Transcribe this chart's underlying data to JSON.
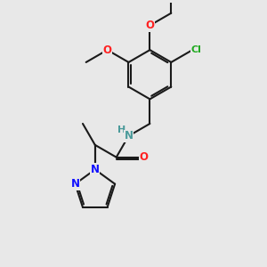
{
  "background_color": "#e8e8e8",
  "bond_color": "#1a1a1a",
  "atom_colors": {
    "O": "#ff2020",
    "N_pyrazole": "#1010ff",
    "N_amide": "#4a9a9a",
    "Cl": "#22aa22",
    "H": "#4a9a9a",
    "C": "#1a1a1a"
  },
  "figsize": [
    3.0,
    3.0
  ],
  "dpi": 100,
  "xlim": [
    -0.5,
    5.5
  ],
  "ylim": [
    -4.0,
    4.0
  ]
}
